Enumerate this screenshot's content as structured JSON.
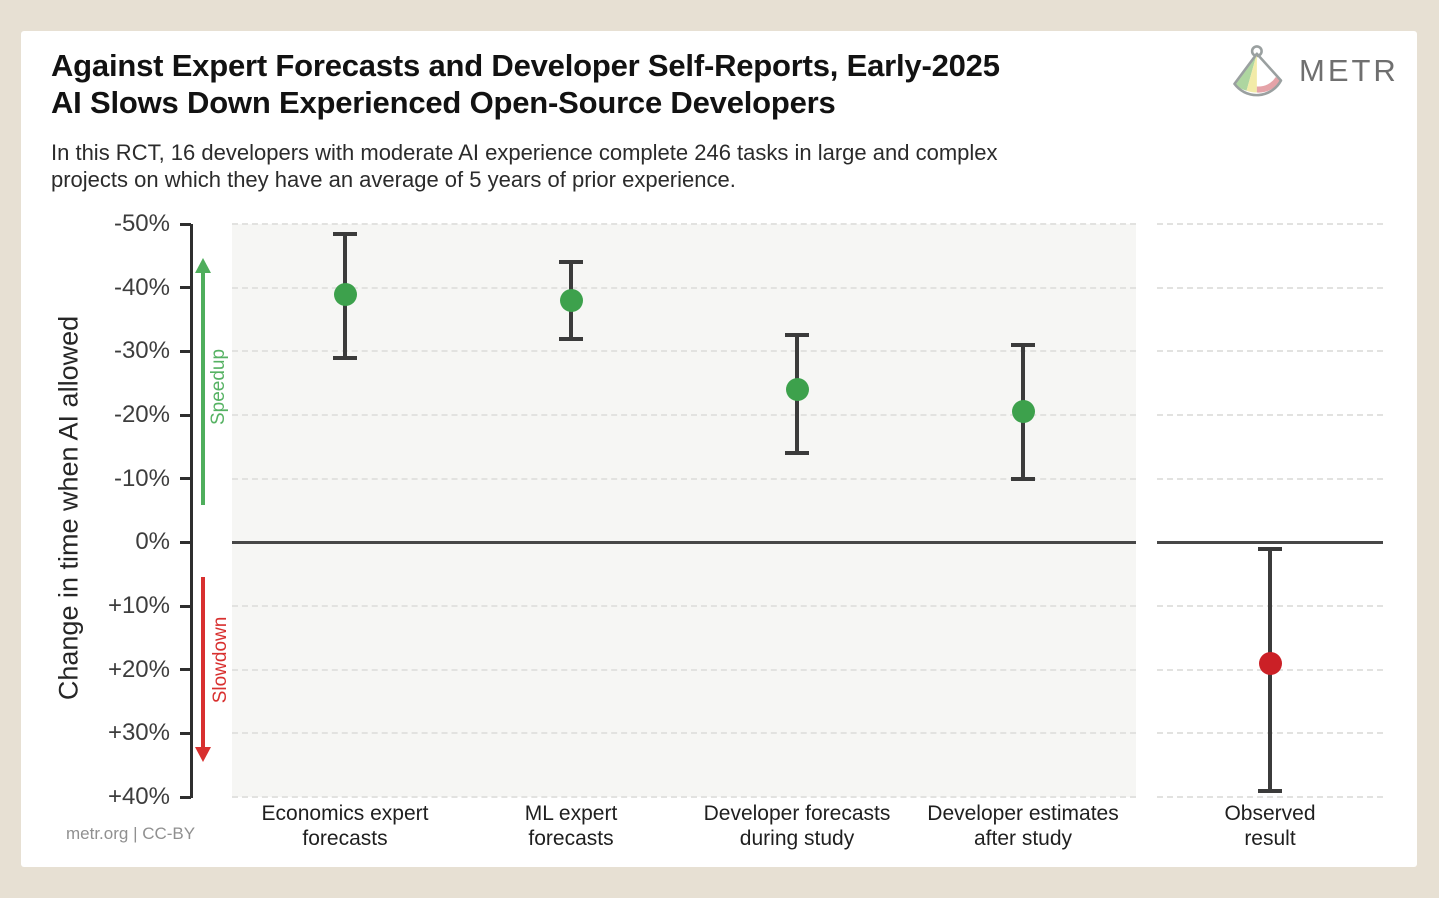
{
  "header": {
    "title_line1": "Against Expert Forecasts and Developer Self-Reports, Early-2025",
    "title_line2": "AI Slows Down Experienced Open-Source Developers",
    "subtitle_line1": "In this RCT, 16 developers with moderate AI experience complete 246 tasks in large and complex",
    "subtitle_line2": "projects on which they have an average of 5 years of prior experience.",
    "logo_text": "METR"
  },
  "footer": {
    "credit": "metr.org  |  CC-BY"
  },
  "colors": {
    "page_background": "#e7e0d3",
    "card_background": "#ffffff",
    "panel_fill": "#f6f6f4",
    "gridline": "#e2e2e0",
    "axis": "#2f2f2f",
    "errorbar": "#3b3b3b",
    "green_point": "#3da14c",
    "red_point": "#cb2026",
    "speedup_green": "#4fae5c",
    "slowdown_red": "#d8302f"
  },
  "chart_data": {
    "type": "scatter",
    "subtype": "point-estimates-with-error-bars",
    "ylabel": "Change in time when AI allowed",
    "ylim_top": -50,
    "ylim_bottom": 40,
    "y_axis_inverted": true,
    "grid": "dashed-horizontal",
    "zero_line": 0,
    "yticks": [
      {
        "v": -50,
        "label": "-50%"
      },
      {
        "v": -40,
        "label": "-40%"
      },
      {
        "v": -30,
        "label": "-30%"
      },
      {
        "v": -20,
        "label": "-20%"
      },
      {
        "v": -10,
        "label": "-10%"
      },
      {
        "v": 0,
        "label": "0%"
      },
      {
        "v": 10,
        "label": "+10%"
      },
      {
        "v": 20,
        "label": "+20%"
      },
      {
        "v": 30,
        "label": "+30%"
      },
      {
        "v": 40,
        "label": "+40%"
      }
    ],
    "annotations": {
      "speedup_label": "Speedup",
      "slowdown_label": "Slowdown"
    },
    "series": [
      {
        "name": "Economics expert forecasts",
        "label_line1": "Economics expert",
        "label_line2": "forecasts",
        "value": -39,
        "ci": [
          -48.5,
          -29
        ],
        "color": "#3da14c",
        "panel": "left"
      },
      {
        "name": "ML expert forecasts",
        "label_line1": "ML expert",
        "label_line2": "forecasts",
        "value": -38,
        "ci": [
          -44,
          -32
        ],
        "color": "#3da14c",
        "panel": "left"
      },
      {
        "name": "Developer forecasts during study",
        "label_line1": "Developer forecasts",
        "label_line2": "during study",
        "value": -24,
        "ci": [
          -32.5,
          -14
        ],
        "color": "#3da14c",
        "panel": "left"
      },
      {
        "name": "Developer estimates after study",
        "label_line1": "Developer estimates",
        "label_line2": "after study",
        "value": -20.5,
        "ci": [
          -31,
          -10
        ],
        "color": "#3da14c",
        "panel": "left"
      },
      {
        "name": "Observed result",
        "label_line1": "Observed",
        "label_line2": "result",
        "value": 19,
        "ci": [
          1,
          39
        ],
        "color": "#cb2026",
        "panel": "right"
      }
    ]
  }
}
